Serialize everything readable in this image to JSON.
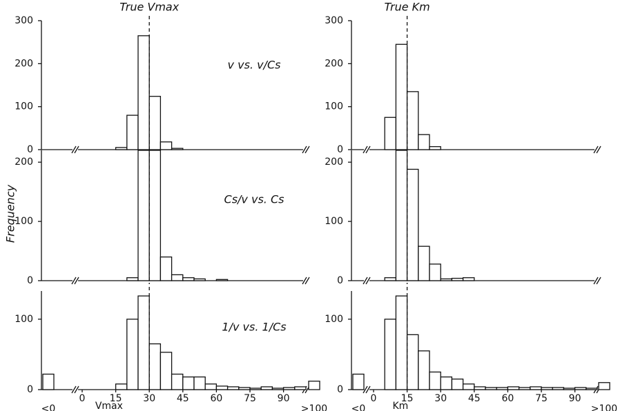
{
  "ylabel": "Frequency",
  "chart_data": [
    {
      "type": "histogram",
      "annotation": "True Vmax",
      "true_value": 30,
      "color": "#111111",
      "bins": [
        0,
        5,
        10,
        15,
        20,
        25,
        30,
        35,
        40,
        45,
        50,
        55,
        60,
        65,
        70,
        75,
        80,
        85,
        90,
        95,
        100
      ],
      "counts": [
        0,
        0,
        0,
        5,
        80,
        265,
        124,
        18,
        3,
        0,
        0,
        0,
        0,
        0,
        0,
        0,
        0,
        0,
        0,
        0
      ],
      "xlim": [
        0,
        100
      ],
      "ylim": [
        0,
        300
      ],
      "yticks": [
        0,
        100,
        200,
        300
      ],
      "method": "v vs. v/Cs"
    },
    {
      "type": "histogram",
      "annotation": "True Km",
      "true_value": 15,
      "color": "#111111",
      "bins": [
        0,
        5,
        10,
        15,
        20,
        25,
        30,
        35,
        40,
        45,
        50,
        55,
        60,
        65,
        70,
        75,
        80,
        85,
        90,
        95,
        100
      ],
      "counts": [
        0,
        75,
        245,
        135,
        35,
        7,
        0,
        0,
        0,
        0,
        0,
        0,
        0,
        0,
        0,
        0,
        0,
        0,
        0,
        0
      ],
      "xlim": [
        0,
        100
      ],
      "ylim": [
        0,
        300
      ],
      "yticks": [
        0,
        100,
        200,
        300
      ]
    },
    {
      "type": "histogram",
      "true_value": 30,
      "color": "#111111",
      "bins": [
        0,
        5,
        10,
        15,
        20,
        25,
        30,
        35,
        40,
        45,
        50,
        55,
        60,
        65,
        70,
        75,
        80,
        85,
        90,
        95,
        100
      ],
      "counts": [
        0,
        0,
        0,
        0,
        5,
        220,
        220,
        40,
        10,
        5,
        3,
        0,
        2,
        0,
        0,
        0,
        0,
        0,
        0,
        0
      ],
      "xlim": [
        0,
        100
      ],
      "ylim": [
        0,
        220
      ],
      "yticks": [
        0,
        100,
        200
      ],
      "method": "Cs/v vs. Cs"
    },
    {
      "type": "histogram",
      "true_value": 15,
      "color": "#111111",
      "bins": [
        0,
        5,
        10,
        15,
        20,
        25,
        30,
        35,
        40,
        45,
        50,
        55,
        60,
        65,
        70,
        75,
        80,
        85,
        90,
        95,
        100
      ],
      "counts": [
        0,
        5,
        220,
        188,
        58,
        28,
        3,
        4,
        5,
        0,
        0,
        0,
        0,
        0,
        0,
        0,
        0,
        0,
        0,
        0
      ],
      "xlim": [
        0,
        100
      ],
      "ylim": [
        0,
        220
      ],
      "yticks": [
        0,
        100,
        200
      ]
    },
    {
      "type": "histogram",
      "true_value": 30,
      "color": "#111111",
      "bins": [
        0,
        5,
        10,
        15,
        20,
        25,
        30,
        35,
        40,
        45,
        50,
        55,
        60,
        65,
        70,
        75,
        80,
        85,
        90,
        95,
        100
      ],
      "counts": [
        0,
        0,
        0,
        8,
        100,
        133,
        65,
        53,
        22,
        18,
        18,
        8,
        5,
        4,
        3,
        2,
        4,
        2,
        3,
        4
      ],
      "xlim": [
        0,
        100
      ],
      "ylim": [
        0,
        140
      ],
      "yticks": [
        0,
        100
      ],
      "xticks": [
        0,
        15,
        30,
        45,
        60,
        75,
        90
      ],
      "xlabel": "Vmax",
      "method": "1/v vs. 1/Cs",
      "outliers": [
        {
          "label": "<0",
          "value": 22
        },
        {
          "label": ">100",
          "value": 12
        }
      ]
    },
    {
      "type": "histogram",
      "true_value": 15,
      "color": "#111111",
      "bins": [
        0,
        5,
        10,
        15,
        20,
        25,
        30,
        35,
        40,
        45,
        50,
        55,
        60,
        65,
        70,
        75,
        80,
        85,
        90,
        95,
        100
      ],
      "counts": [
        0,
        100,
        133,
        78,
        55,
        25,
        18,
        15,
        8,
        4,
        3,
        3,
        4,
        3,
        4,
        3,
        3,
        2,
        3,
        2
      ],
      "xlim": [
        0,
        100
      ],
      "ylim": [
        0,
        140
      ],
      "yticks": [
        0,
        100
      ],
      "xticks": [
        0,
        15,
        30,
        45,
        60,
        75,
        90
      ],
      "xlabel": "Km",
      "outliers": [
        {
          "label": "<0",
          "value": 22
        },
        {
          "label": ">100",
          "value": 10
        }
      ]
    }
  ]
}
